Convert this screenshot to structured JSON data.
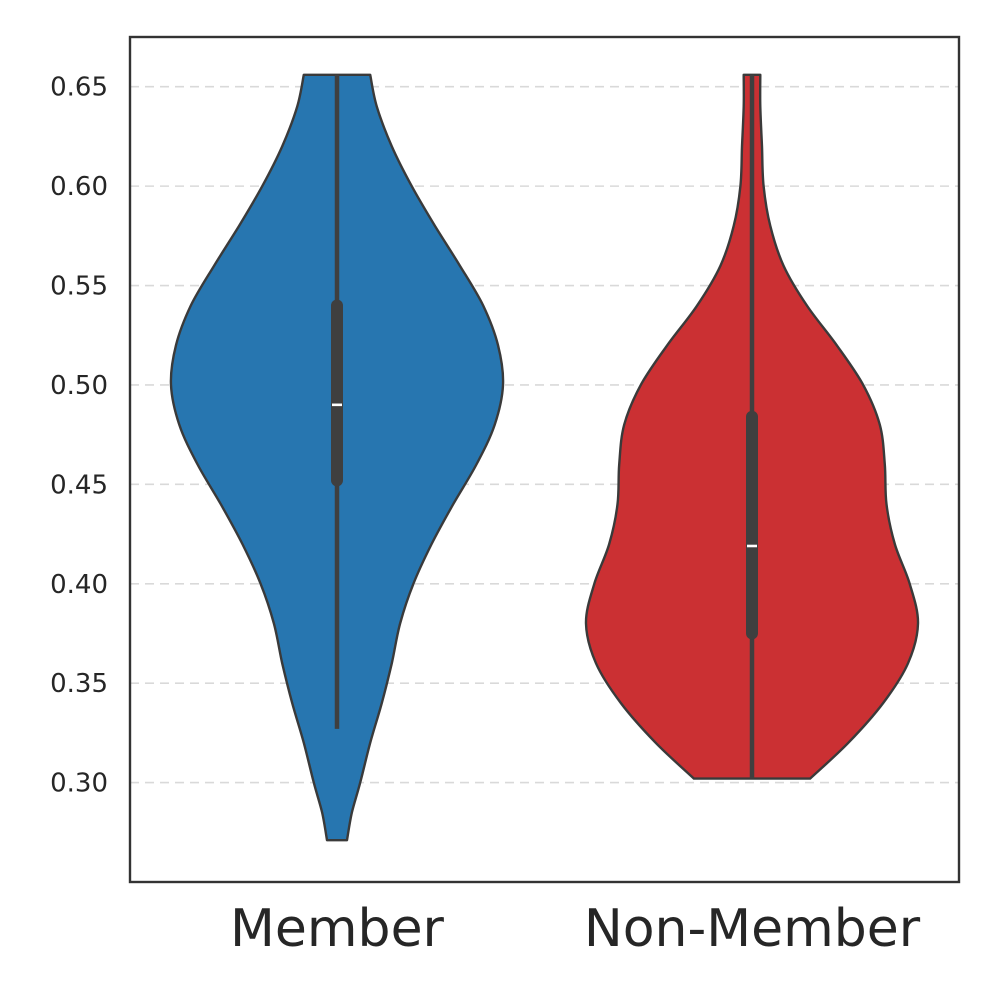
{
  "chart_data": {
    "type": "violin",
    "categories": [
      "Member",
      "Non-Member"
    ],
    "ylim": [
      0.25,
      0.675
    ],
    "yticks": [
      "0.30",
      "0.35",
      "0.40",
      "0.45",
      "0.50",
      "0.55",
      "0.60",
      "0.65"
    ],
    "ytick_values": [
      0.3,
      0.35,
      0.4,
      0.45,
      0.5,
      0.55,
      0.6,
      0.65
    ],
    "grid": "horizontal-dashed",
    "legend": "none",
    "series": [
      {
        "category": "Member",
        "color": "#2776b0",
        "min": 0.271,
        "max": 0.656,
        "whisker_low": 0.327,
        "whisker_high": 0.656,
        "q1": 0.449,
        "median": 0.49,
        "q3": 0.543,
        "density_profile": [
          [
            0.271,
            0.06
          ],
          [
            0.285,
            0.09
          ],
          [
            0.3,
            0.14
          ],
          [
            0.32,
            0.2
          ],
          [
            0.34,
            0.27
          ],
          [
            0.36,
            0.33
          ],
          [
            0.38,
            0.38
          ],
          [
            0.4,
            0.46
          ],
          [
            0.42,
            0.57
          ],
          [
            0.44,
            0.7
          ],
          [
            0.46,
            0.84
          ],
          [
            0.48,
            0.95
          ],
          [
            0.5,
            1.0
          ],
          [
            0.52,
            0.97
          ],
          [
            0.54,
            0.88
          ],
          [
            0.56,
            0.74
          ],
          [
            0.58,
            0.59
          ],
          [
            0.6,
            0.45
          ],
          [
            0.62,
            0.33
          ],
          [
            0.64,
            0.24
          ],
          [
            0.656,
            0.2
          ]
        ]
      },
      {
        "category": "Non-Member",
        "color": "#cb3033",
        "min": 0.302,
        "max": 0.656,
        "whisker_low": 0.302,
        "whisker_high": 0.656,
        "q1": 0.372,
        "median": 0.419,
        "q3": 0.487,
        "density_profile": [
          [
            0.302,
            0.35
          ],
          [
            0.32,
            0.58
          ],
          [
            0.34,
            0.79
          ],
          [
            0.36,
            0.94
          ],
          [
            0.38,
            1.0
          ],
          [
            0.4,
            0.95
          ],
          [
            0.42,
            0.86
          ],
          [
            0.44,
            0.81
          ],
          [
            0.46,
            0.8
          ],
          [
            0.48,
            0.77
          ],
          [
            0.5,
            0.67
          ],
          [
            0.52,
            0.51
          ],
          [
            0.54,
            0.33
          ],
          [
            0.56,
            0.19
          ],
          [
            0.58,
            0.11
          ],
          [
            0.6,
            0.07
          ],
          [
            0.62,
            0.06
          ],
          [
            0.64,
            0.05
          ],
          [
            0.656,
            0.05
          ]
        ]
      }
    ]
  }
}
